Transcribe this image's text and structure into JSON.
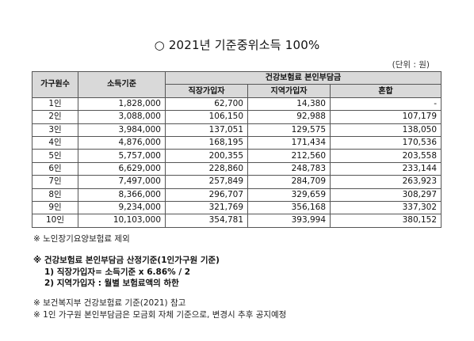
{
  "title": "○ 2021년 기준중위소득 100%",
  "unit": "(단위 : 원)",
  "table": {
    "col_household": "가구원수",
    "col_income": "소득기준",
    "col_group": "건강보험료 본인부담금",
    "col_employee": "직장가입자",
    "col_regional": "지역가입자",
    "col_mixed": "혼합",
    "rows": [
      {
        "size": "1인",
        "income": "1,828,000",
        "employee": "62,700",
        "regional": "14,380",
        "mixed": "-"
      },
      {
        "size": "2인",
        "income": "3,088,000",
        "employee": "106,150",
        "regional": "92,988",
        "mixed": "107,179"
      },
      {
        "size": "3인",
        "income": "3,984,000",
        "employee": "137,051",
        "regional": "129,575",
        "mixed": "138,050"
      },
      {
        "size": "4인",
        "income": "4,876,000",
        "employee": "168,195",
        "regional": "171,434",
        "mixed": "170,536"
      },
      {
        "size": "5인",
        "income": "5,757,000",
        "employee": "200,355",
        "regional": "212,560",
        "mixed": "203,558"
      },
      {
        "size": "6인",
        "income": "6,629,000",
        "employee": "228,860",
        "regional": "248,783",
        "mixed": "233,144"
      },
      {
        "size": "7인",
        "income": "7,497,000",
        "employee": "257,849",
        "regional": "284,709",
        "mixed": "263,923"
      },
      {
        "size": "8인",
        "income": "8,366,000",
        "employee": "296,707",
        "regional": "329,659",
        "mixed": "308,297"
      },
      {
        "size": "9인",
        "income": "9,234,000",
        "employee": "321,769",
        "regional": "356,168",
        "mixed": "337,302"
      },
      {
        "size": "10인",
        "income": "10,103,000",
        "employee": "354,781",
        "regional": "393,994",
        "mixed": "380,152"
      }
    ]
  },
  "note_exclusion": "※ 노인장기요양보험료 제외",
  "calc": {
    "heading": "※ 건강보험료 본인부담금 산정기준(1인가구원 기준)",
    "line1": "1) 직장가입자= 소득기준 x 6.86% / 2",
    "line2": "2) 지역가입자 : 월별 보험료액의 하한"
  },
  "footnotes": {
    "ref": "※ 보건복지부 건강보험료 기준(2021) 참고",
    "single": "※ 1인 가구원 본인부담금은 모금회 자체 기준으로, 변경시 추후 공지예정"
  },
  "colors": {
    "header_bg": "#d9d9d9",
    "border": "#555555"
  }
}
